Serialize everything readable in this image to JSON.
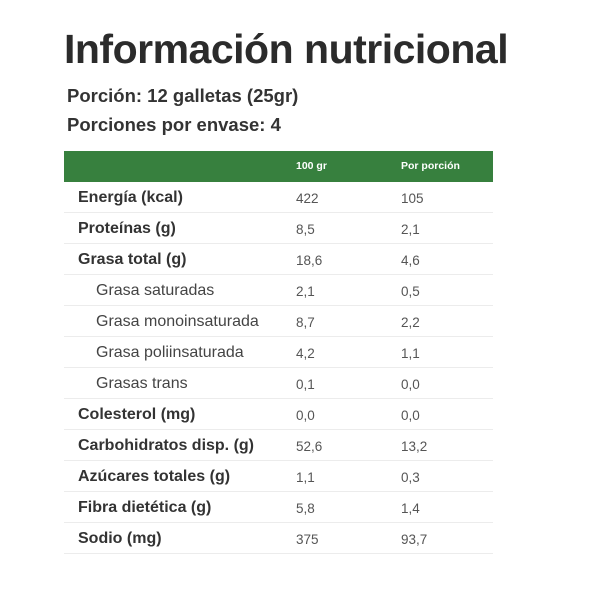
{
  "title": "Información nutricional",
  "serving": "Porción: 12 galletas (25gr)",
  "servings_per_package": "Porciones por envase: 4",
  "colors": {
    "header": "#37803e",
    "text": "#333333"
  },
  "table": {
    "headers": [
      "",
      "100 gr",
      "Por porción"
    ],
    "rows": [
      {
        "label": "Energía (kcal)",
        "per100": "422",
        "perServing": "105",
        "sub": false
      },
      {
        "label": "Proteínas (g)",
        "per100": "8,5",
        "perServing": "2,1",
        "sub": false
      },
      {
        "label": "Grasa total (g)",
        "per100": "18,6",
        "perServing": "4,6",
        "sub": false
      },
      {
        "label": "Grasa saturadas",
        "per100": "2,1",
        "perServing": "0,5",
        "sub": true
      },
      {
        "label": "Grasa monoinsaturada",
        "per100": "8,7",
        "perServing": "2,2",
        "sub": true
      },
      {
        "label": "Grasa poliinsaturada",
        "per100": "4,2",
        "perServing": "1,1",
        "sub": true
      },
      {
        "label": "Grasas trans",
        "per100": "0,1",
        "perServing": "0,0",
        "sub": true
      },
      {
        "label": "Colesterol (mg)",
        "per100": "0,0",
        "perServing": "0,0",
        "sub": false
      },
      {
        "label": "Carbohidratos disp. (g)",
        "per100": "52,6",
        "perServing": "13,2",
        "sub": false
      },
      {
        "label": "Azúcares totales (g)",
        "per100": "1,1",
        "perServing": "0,3",
        "sub": false
      },
      {
        "label": "Fibra dietética (g)",
        "per100": "5,8",
        "perServing": "1,4",
        "sub": false
      },
      {
        "label": "Sodio (mg)",
        "per100": "375",
        "perServing": "93,7",
        "sub": false
      }
    ]
  }
}
